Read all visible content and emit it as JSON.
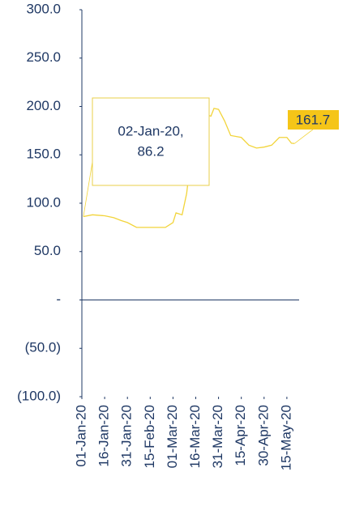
{
  "chart_data": {
    "type": "line",
    "x": [
      "2020-01-02",
      "2020-01-08",
      "2020-01-16",
      "2020-01-22",
      "2020-01-27",
      "2020-01-31",
      "2020-02-06",
      "2020-02-15",
      "2020-02-25",
      "2020-03-01",
      "2020-03-03",
      "2020-03-07",
      "2020-03-10",
      "2020-03-13",
      "2020-03-16",
      "2020-03-19",
      "2020-03-22",
      "2020-03-26",
      "2020-03-28",
      "2020-03-31",
      "2020-04-04",
      "2020-04-08",
      "2020-04-15",
      "2020-04-20",
      "2020-04-25",
      "2020-04-30",
      "2020-05-05",
      "2020-05-10",
      "2020-05-15",
      "2020-05-18",
      "2020-05-20"
    ],
    "series": [
      {
        "color": "#f2d43a",
        "values": [
          86.2,
          88,
          87,
          85,
          82,
          80,
          75,
          75,
          75,
          80,
          90,
          88,
          110,
          150,
          190,
          205,
          192,
          190,
          198,
          197,
          185,
          170,
          168,
          160,
          157,
          158,
          160,
          168,
          168,
          162,
          161.7
        ]
      }
    ],
    "xlim": [
      "2020-01-01",
      "2020-05-22"
    ],
    "xticks": [
      {
        "value": "2020-01-01",
        "label": "01-Jan-20"
      },
      {
        "value": "2020-01-16",
        "label": "16-Jan-20"
      },
      {
        "value": "2020-01-31",
        "label": "31-Jan-20"
      },
      {
        "value": "2020-02-15",
        "label": "15-Feb-20"
      },
      {
        "value": "2020-03-01",
        "label": "01-Mar-20"
      },
      {
        "value": "2020-03-16",
        "label": "16-Mar-20"
      },
      {
        "value": "2020-03-31",
        "label": "31-Mar-20"
      },
      {
        "value": "2020-04-15",
        "label": "15-Apr-20"
      },
      {
        "value": "2020-04-30",
        "label": "30-Apr-20"
      },
      {
        "value": "2020-05-15",
        "label": "15-May-20"
      }
    ],
    "ylim": [
      -100,
      300
    ],
    "yticks": [
      {
        "value": 300,
        "label": "300.0"
      },
      {
        "value": 250,
        "label": "250.0"
      },
      {
        "value": 200,
        "label": "200.0"
      },
      {
        "value": 150,
        "label": "150.0"
      },
      {
        "value": 100,
        "label": "100.0"
      },
      {
        "value": 50,
        "label": "50.0"
      },
      {
        "value": 0,
        "label": "-"
      },
      {
        "value": -50,
        "label": "(50.0)"
      },
      {
        "value": -100,
        "label": "(100.0)"
      }
    ],
    "annotations": [
      {
        "x": "2020-01-02",
        "y": 86.2,
        "label": [
          "02-Jan-20,",
          "86.2"
        ]
      },
      {
        "x": "2020-05-20",
        "y": 161.7,
        "label": [
          "161.7"
        ]
      }
    ]
  }
}
